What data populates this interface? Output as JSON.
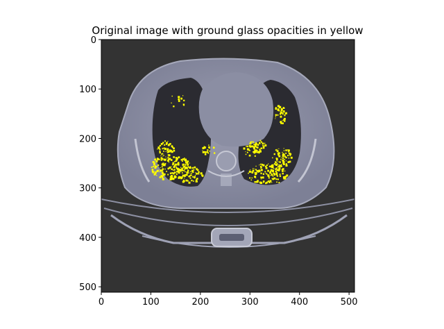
{
  "chart_data": {
    "type": "image",
    "title": "Original image with ground glass opacities in yellow",
    "xlabel": "",
    "ylabel": "",
    "xlim": [
      0,
      511
    ],
    "ylim": [
      511,
      0
    ],
    "xticks": [
      0,
      100,
      200,
      300,
      400,
      500
    ],
    "yticks": [
      0,
      100,
      200,
      300,
      400,
      500
    ],
    "xtick_labels": [
      "0",
      "100",
      "200",
      "300",
      "400",
      "500"
    ],
    "ytick_labels": [
      "0",
      "100",
      "200",
      "300",
      "400",
      "500"
    ],
    "image_description_colors": {
      "background": "#333333",
      "body": "#8d8fa3",
      "fat": "#6e7187",
      "lung": "#2b2b31",
      "highlight": "#ffff00"
    }
  }
}
